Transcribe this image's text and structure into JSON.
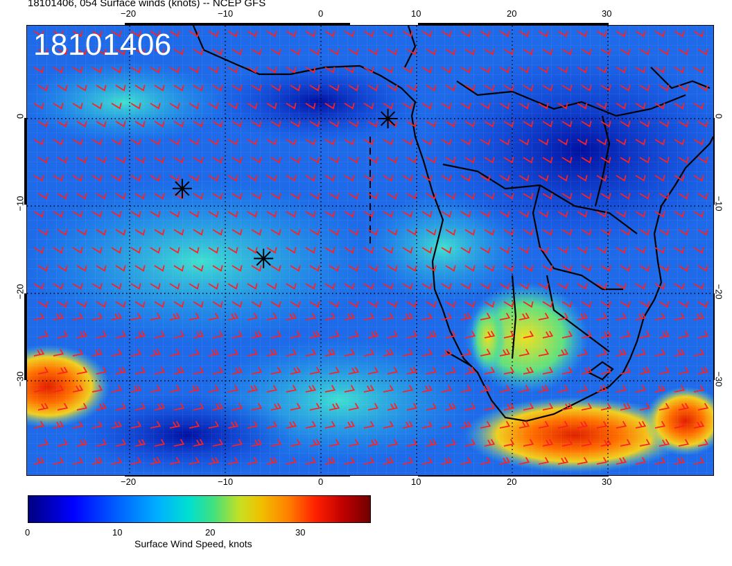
{
  "title": "18101406, 054 Surface winds (knots) -- NCEP GFS",
  "stamp": "18101406",
  "top_ticks": [
    "−20",
    "−10",
    "0",
    "10",
    "20",
    "30"
  ],
  "bottom_ticks": [
    "−20",
    "−10",
    "0",
    "10",
    "20",
    "30"
  ],
  "left_ticks": [
    "0",
    "−10",
    "−20",
    "−30"
  ],
  "right_ticks": [
    "0",
    "−10",
    "−20",
    "−30"
  ],
  "colorbar": {
    "labels": [
      "0",
      "10",
      "20",
      "30"
    ],
    "title": "Surface Wind Speed, knots"
  },
  "colors": {
    "barb": "#ff2020",
    "coast": "#000000",
    "grid": "#000000"
  },
  "markers": [
    {
      "name": "storm-marker-1",
      "lon": -14.5,
      "lat": -8.0
    },
    {
      "name": "storm-marker-2",
      "lon": -6.0,
      "lat": -16.0
    },
    {
      "name": "storm-marker-3",
      "lon": 7.0,
      "lat": 0.0
    }
  ]
}
